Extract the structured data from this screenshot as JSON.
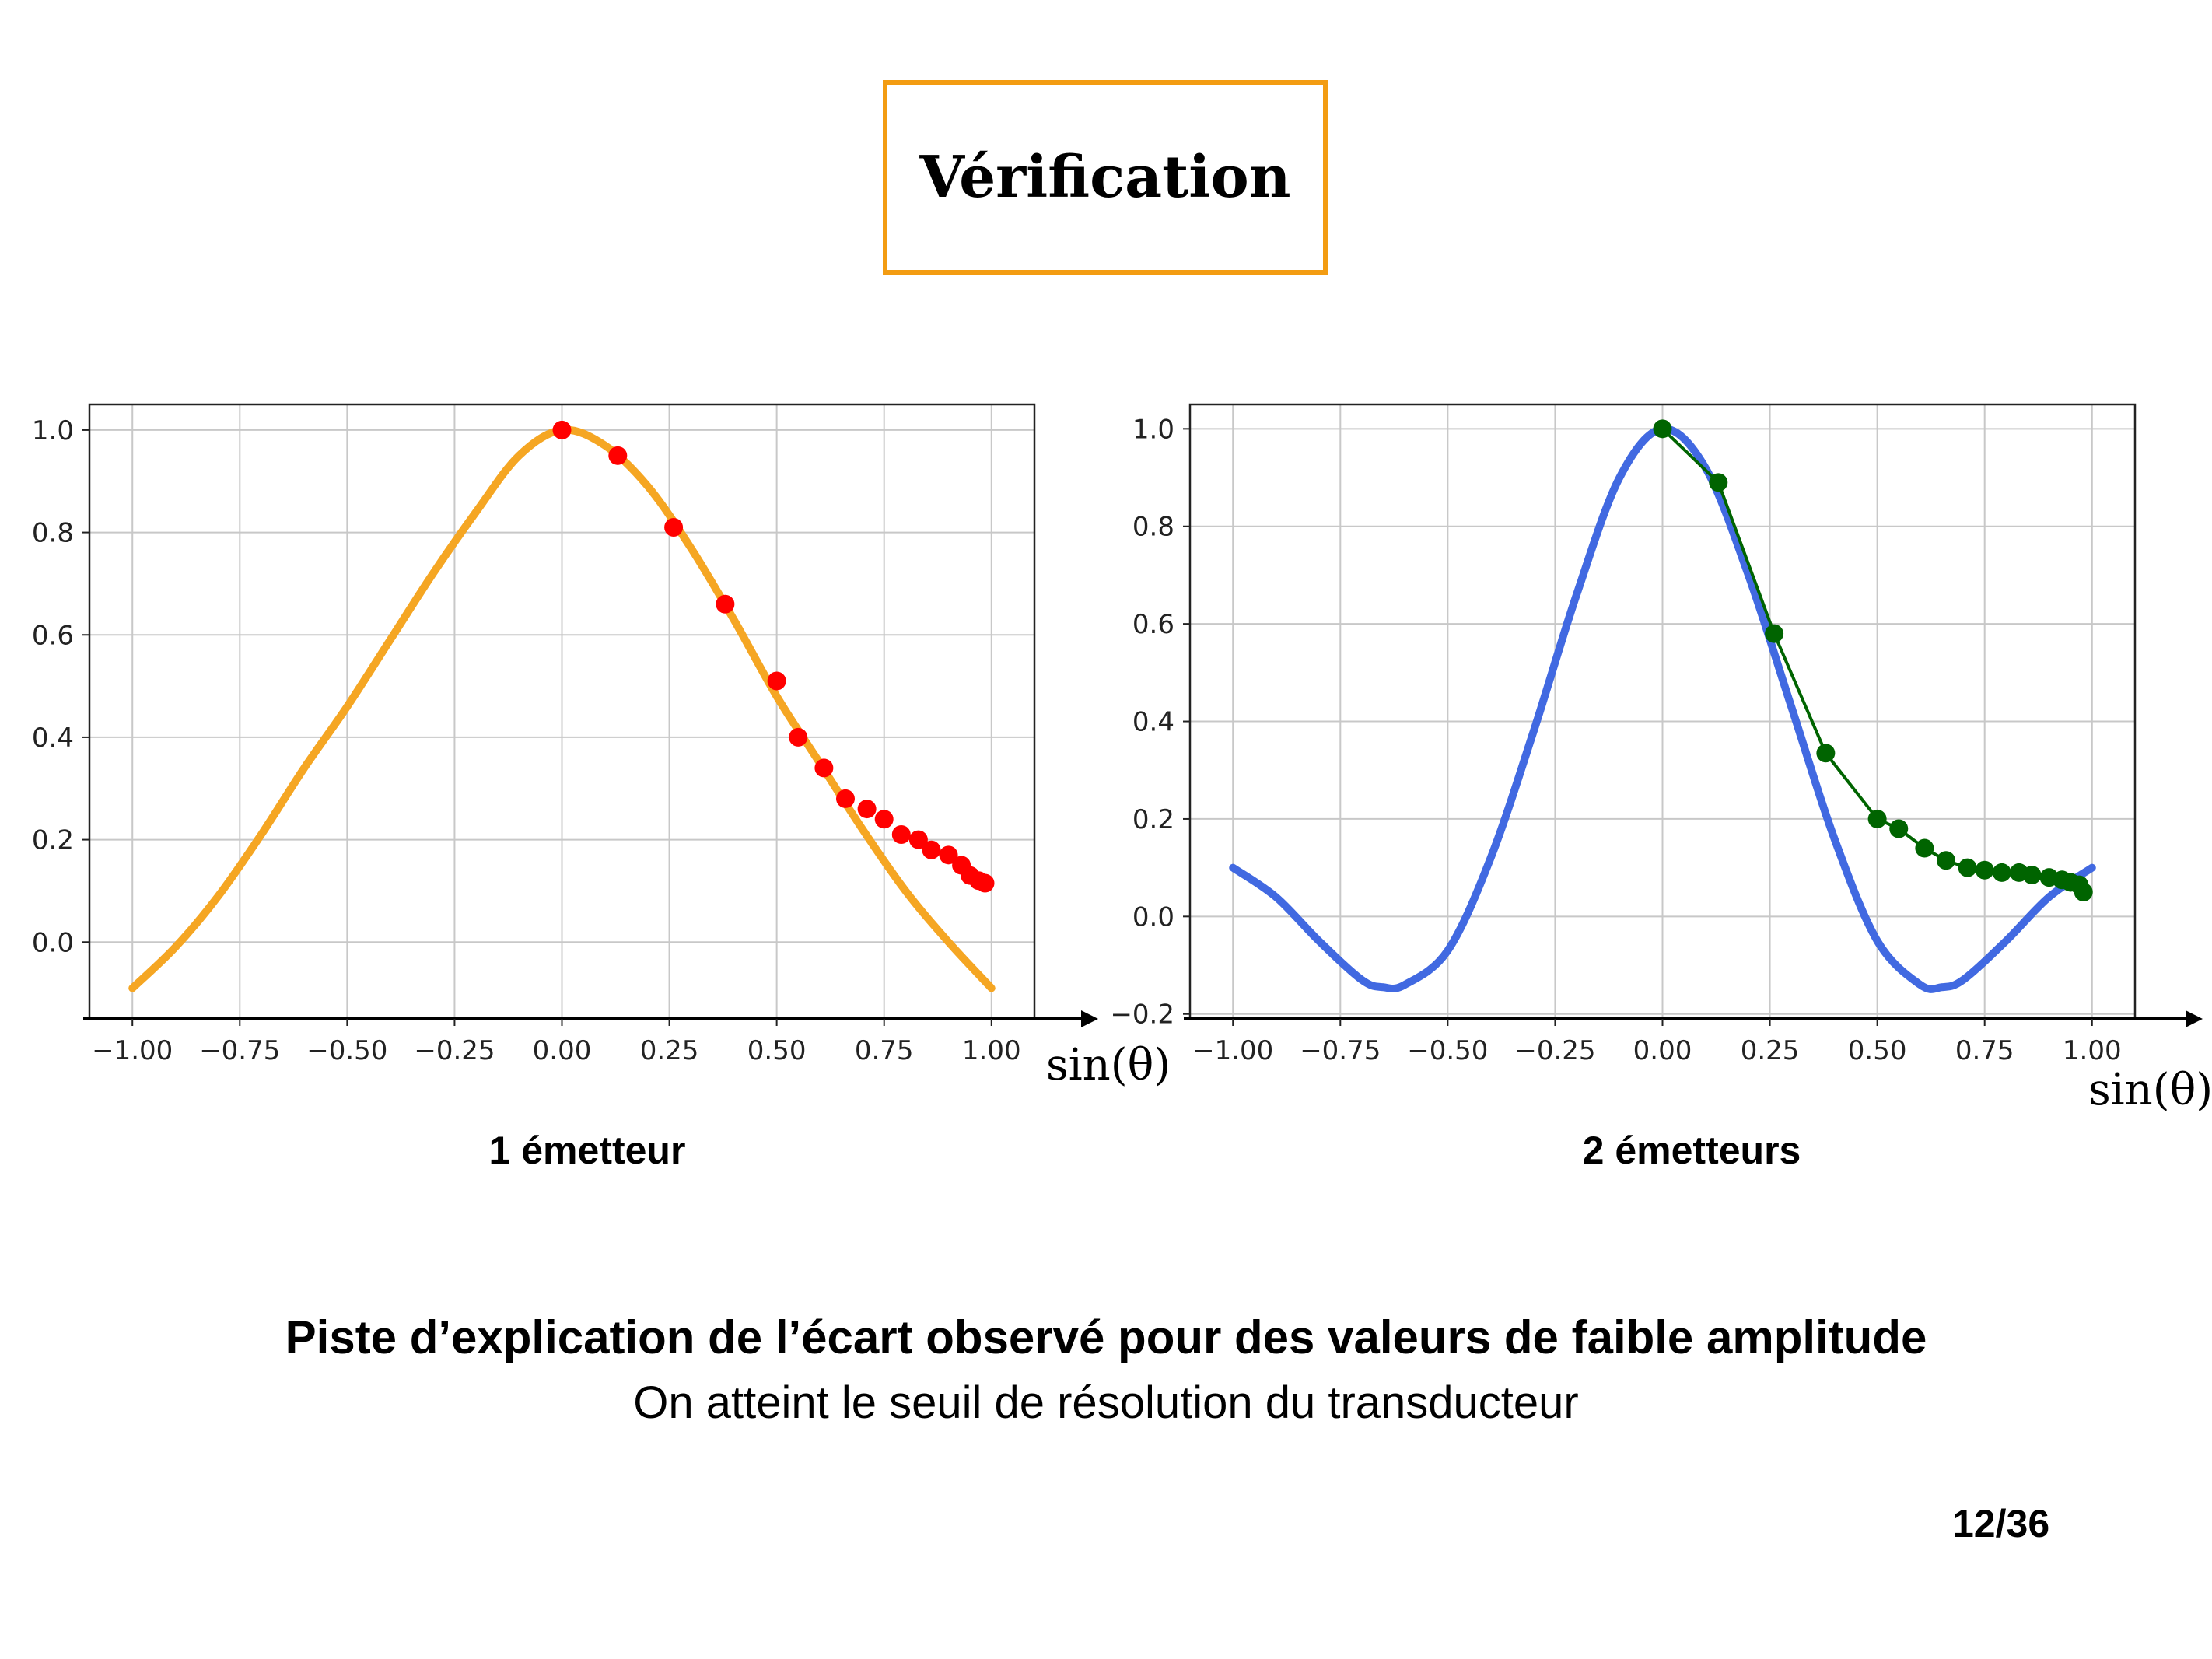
{
  "slide": {
    "title": "Vérification",
    "headline": "Piste d’explication de l’écart observé pour des valeurs de faible amplitude",
    "subline": "On atteint le seuil de résolution du transducteur",
    "page_number": "12/36"
  },
  "colors": {
    "title_border": "#f39c12",
    "curve1": "#f5a623",
    "points1": "#ff0000",
    "curve2": "#4169e1",
    "points2": "#006400",
    "grid": "#c8c8c8"
  },
  "chart_data": [
    {
      "type": "scatter",
      "caption": "1 émetteur",
      "xlabel": "sin(θ)",
      "xlim": [
        -1.1,
        1.1
      ],
      "ylim": [
        -0.15,
        1.05
      ],
      "xticks": [
        -1.0,
        -0.75,
        -0.5,
        -0.25,
        0.0,
        0.25,
        0.5,
        0.75,
        1.0
      ],
      "xtick_labels": [
        "−1.00",
        "−0.75",
        "−0.50",
        "−0.25",
        "0.00",
        "0.25",
        "0.50",
        "0.75",
        "1.00"
      ],
      "yticks": [
        0.0,
        0.2,
        0.4,
        0.6,
        0.8,
        1.0
      ],
      "ytick_labels": [
        "0.0",
        "0.2",
        "0.4",
        "0.6",
        "0.8",
        "1.0"
      ],
      "grid": true,
      "series": [
        {
          "kind": "line",
          "x": [
            -1.0,
            -0.9,
            -0.8,
            -0.7,
            -0.6,
            -0.5,
            -0.4,
            -0.3,
            -0.2,
            -0.1,
            0.0,
            0.1,
            0.2,
            0.3,
            0.4,
            0.5,
            0.6,
            0.7,
            0.8,
            0.9,
            1.0
          ],
          "y": [
            -0.09,
            -0.01,
            0.09,
            0.21,
            0.34,
            0.46,
            0.59,
            0.72,
            0.84,
            0.95,
            1.0,
            0.97,
            0.89,
            0.77,
            0.63,
            0.48,
            0.35,
            0.22,
            0.1,
            0.0,
            -0.09
          ]
        },
        {
          "kind": "points",
          "x": [
            0.0,
            0.13,
            0.26,
            0.38,
            0.5,
            0.55,
            0.61,
            0.66,
            0.71,
            0.75,
            0.79,
            0.83,
            0.86,
            0.9,
            0.93,
            0.95,
            0.97,
            0.985
          ],
          "y": [
            1.0,
            0.95,
            0.81,
            0.66,
            0.51,
            0.4,
            0.34,
            0.28,
            0.26,
            0.24,
            0.21,
            0.2,
            0.18,
            0.17,
            0.15,
            0.13,
            0.12,
            0.115
          ]
        }
      ]
    },
    {
      "type": "scatter",
      "caption": "2 émetteurs",
      "xlabel": "sin(θ)",
      "xlim": [
        -1.1,
        1.1
      ],
      "ylim": [
        -0.21,
        1.05
      ],
      "xticks": [
        -1.0,
        -0.75,
        -0.5,
        -0.25,
        0.0,
        0.25,
        0.5,
        0.75,
        1.0
      ],
      "xtick_labels": [
        "−1.00",
        "−0.75",
        "−0.50",
        "−0.25",
        "0.00",
        "0.25",
        "0.50",
        "0.75",
        "1.00"
      ],
      "yticks": [
        -0.2,
        0.0,
        0.2,
        0.4,
        0.6,
        0.8,
        1.0
      ],
      "ytick_labels": [
        "−0.2",
        "0.0",
        "0.2",
        "0.4",
        "0.6",
        "0.8",
        "1.0"
      ],
      "grid": true,
      "series": [
        {
          "kind": "line",
          "x": [
            -1.0,
            -0.9,
            -0.8,
            -0.7,
            -0.65,
            -0.6,
            -0.5,
            -0.4,
            -0.3,
            -0.2,
            -0.1,
            0.0,
            0.1,
            0.2,
            0.3,
            0.4,
            0.5,
            0.6,
            0.65,
            0.7,
            0.8,
            0.9,
            1.0
          ],
          "y": [
            0.1,
            0.04,
            -0.05,
            -0.13,
            -0.145,
            -0.14,
            -0.07,
            0.12,
            0.38,
            0.66,
            0.9,
            1.0,
            0.92,
            0.7,
            0.43,
            0.16,
            -0.05,
            -0.14,
            -0.145,
            -0.13,
            -0.05,
            0.04,
            0.1
          ]
        },
        {
          "kind": "line-points",
          "x": [
            0.0,
            0.13,
            0.26,
            0.38,
            0.5,
            0.55,
            0.61,
            0.66,
            0.71,
            0.75,
            0.79,
            0.83,
            0.86,
            0.9,
            0.93,
            0.95,
            0.97,
            0.98
          ],
          "y": [
            1.0,
            0.89,
            0.58,
            0.335,
            0.2,
            0.18,
            0.14,
            0.115,
            0.1,
            0.095,
            0.09,
            0.09,
            0.085,
            0.08,
            0.075,
            0.07,
            0.065,
            0.05
          ]
        }
      ]
    }
  ]
}
